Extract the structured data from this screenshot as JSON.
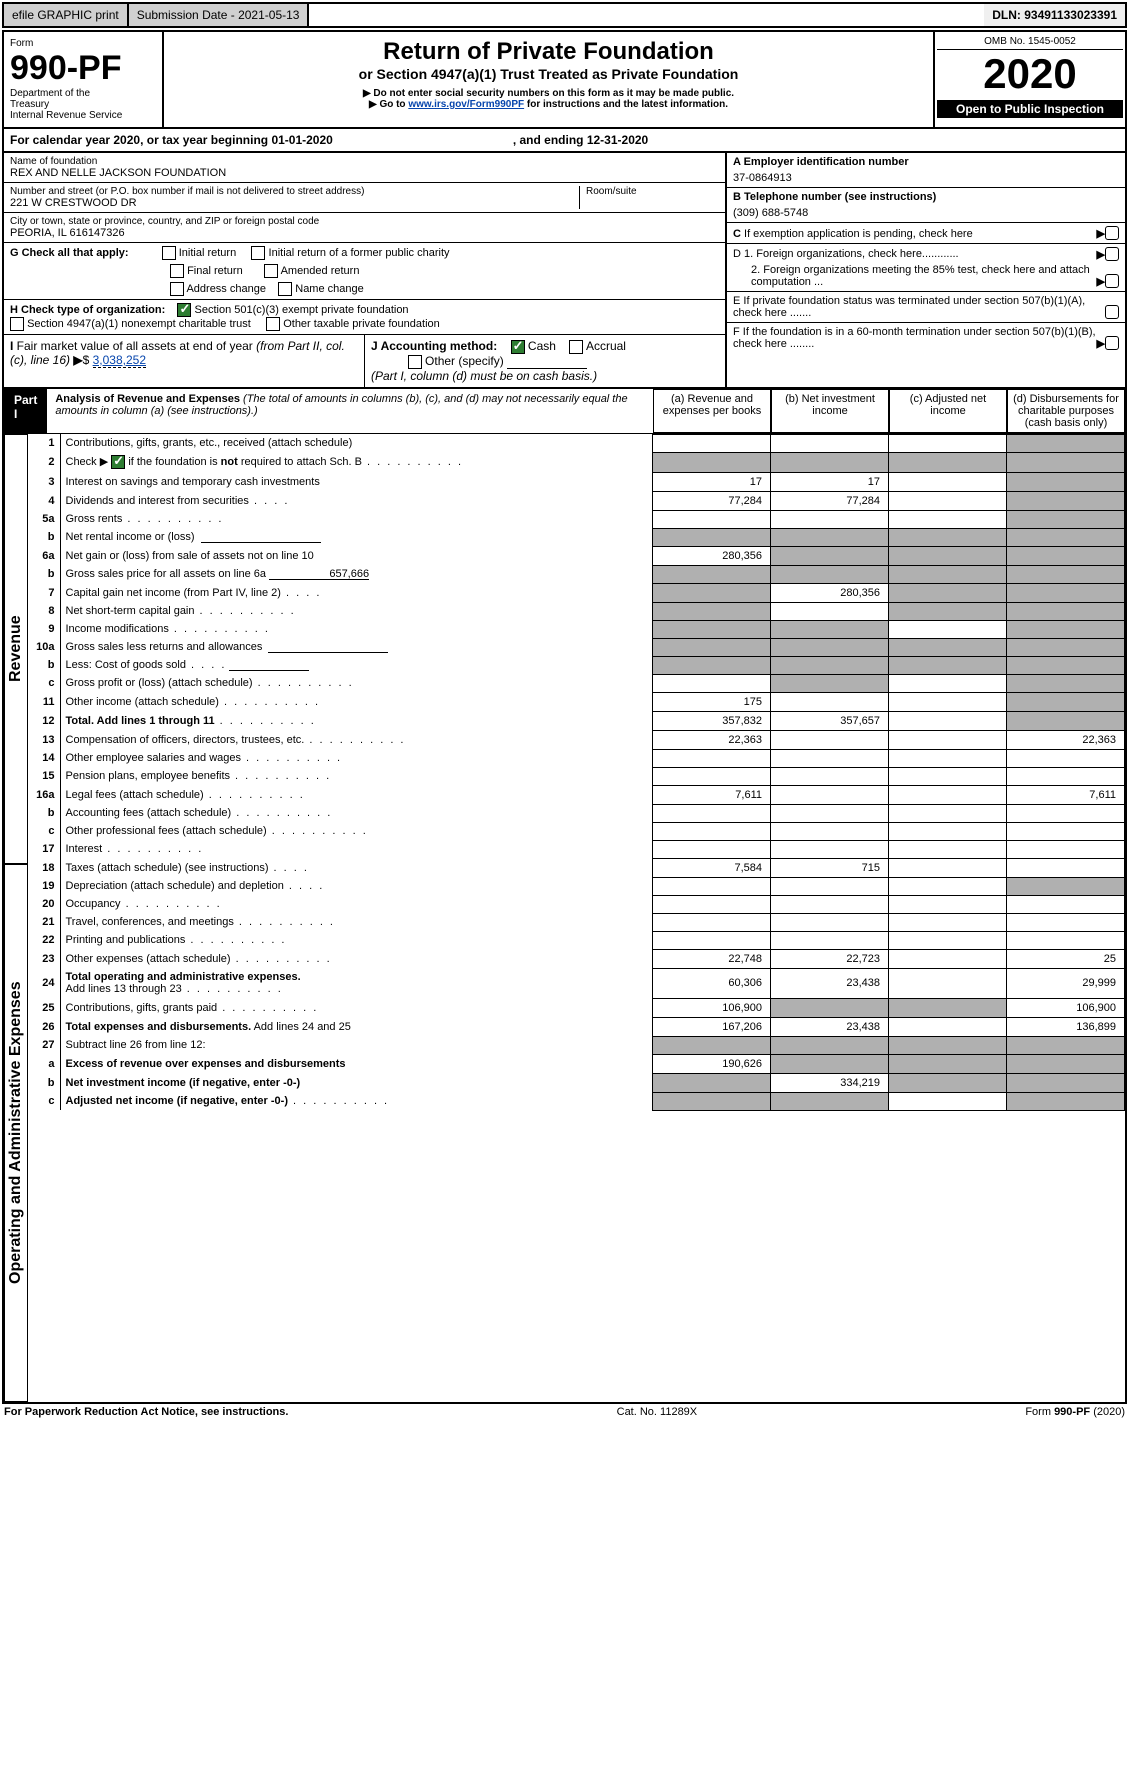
{
  "topbar": {
    "efile": "efile GRAPHIC print",
    "submission": "Submission Date - 2021-05-13",
    "dln": "DLN: 93491133023391"
  },
  "header": {
    "form_label": "Form",
    "form_no": "990-PF",
    "dept1": "Department of the",
    "dept2": "Treasury",
    "dept3": "Internal Revenue Service",
    "title": "Return of Private Foundation",
    "sub1": "or Section 4947(a)(1) Trust Treated as Private Foundation",
    "sub2": "▶ Do not enter social security numbers on this form as it may be made public.",
    "sub3_pre": "▶ Go to ",
    "sub3_link": "www.irs.gov/Form990PF",
    "sub3_post": " for instructions and the latest information.",
    "omb": "OMB No. 1545-0052",
    "year": "2020",
    "open": "Open to Public Inspection"
  },
  "cal": {
    "line": "For calendar year 2020, or tax year beginning 01-01-2020",
    "ending": ", and ending 12-31-2020"
  },
  "id": {
    "name_label": "Name of foundation",
    "name": "REX AND NELLE JACKSON FOUNDATION",
    "addr_label": "Number and street (or P.O. box number if mail is not delivered to street address)",
    "addr": "221 W CRESTWOOD DR",
    "room_label": "Room/suite",
    "city_label": "City or town, state or province, country, and ZIP or foreign postal code",
    "city": "PEORIA, IL 616147326",
    "a_label": "A Employer identification number",
    "a_val": "37-0864913",
    "b_label": "B Telephone number (see instructions)",
    "b_val": "(309) 688-5748",
    "c_label": "C If exemption application is pending, check here",
    "d1_label": "D 1. Foreign organizations, check here............",
    "d2_label": "2. Foreign organizations meeting the 85% test, check here and attach computation ...",
    "e_label": "E  If private foundation status was terminated under section 507(b)(1)(A), check here .......",
    "f_label": "F  If the foundation is in a 60-month termination under section 507(b)(1)(B), check here ........"
  },
  "g": {
    "label": "G Check all that apply:",
    "opts": [
      "Initial return",
      "Initial return of a former public charity",
      "Final return",
      "Amended return",
      "Address change",
      "Name change"
    ]
  },
  "h": {
    "label": "H Check type of organization:",
    "opt1": "Section 501(c)(3) exempt private foundation",
    "opt1_checked": true,
    "opt2": "Section 4947(a)(1) nonexempt charitable trust",
    "opt3": "Other taxable private foundation"
  },
  "i": {
    "label": "I Fair market value of all assets at end of year (from Part II, col. (c), line 16)",
    "val": "3,038,252"
  },
  "j": {
    "label": "J Accounting method:",
    "cash": "Cash",
    "cash_checked": true,
    "accrual": "Accrual",
    "other": "Other (specify)",
    "note": "(Part I, column (d) must be on cash basis.)"
  },
  "part1": {
    "label": "Part I",
    "title": "Analysis of Revenue and Expenses",
    "note": " (The total of amounts in columns (b), (c), and (d) may not necessarily equal the amounts in column (a) (see instructions).)",
    "col_a": "(a)   Revenue and expenses per books",
    "col_b": "(b)  Net investment income",
    "col_c": "(c)  Adjusted net income",
    "col_d": "(d)  Disbursements for charitable purposes (cash basis only)"
  },
  "vlabels": {
    "revenue": "Revenue",
    "expenses": "Operating and Administrative Expenses"
  },
  "lines": {
    "1": {
      "n": "1",
      "t": "Contributions, gifts, grants, etc., received (attach schedule)"
    },
    "2": {
      "n": "2",
      "t": "Check ▶",
      "t2": " if the foundation is not required to attach Sch. B",
      "chk": true
    },
    "3": {
      "n": "3",
      "t": "Interest on savings and temporary cash investments",
      "a": "17",
      "b": "17"
    },
    "4": {
      "n": "4",
      "t": "Dividends and interest from securities",
      "a": "77,284",
      "b": "77,284"
    },
    "5a": {
      "n": "5a",
      "t": "Gross rents"
    },
    "5b": {
      "n": "b",
      "t": "Net rental income or (loss)"
    },
    "6a": {
      "n": "6a",
      "t": "Net gain or (loss) from sale of assets not on line 10",
      "a": "280,356"
    },
    "6b": {
      "n": "b",
      "t": "Gross sales price for all assets on line 6a",
      "val": "657,666"
    },
    "7": {
      "n": "7",
      "t": "Capital gain net income (from Part IV, line 2)",
      "b": "280,356"
    },
    "8": {
      "n": "8",
      "t": "Net short-term capital gain"
    },
    "9": {
      "n": "9",
      "t": "Income modifications"
    },
    "10a": {
      "n": "10a",
      "t": "Gross sales less returns and allowances"
    },
    "10b": {
      "n": "b",
      "t": "Less: Cost of goods sold"
    },
    "10c": {
      "n": "c",
      "t": "Gross profit or (loss) (attach schedule)"
    },
    "11": {
      "n": "11",
      "t": "Other income (attach schedule)",
      "a": "175"
    },
    "12": {
      "n": "12",
      "t": "Total. Add lines 1 through 11",
      "a": "357,832",
      "b": "357,657",
      "bold": true
    },
    "13": {
      "n": "13",
      "t": "Compensation of officers, directors, trustees, etc.",
      "a": "22,363",
      "d": "22,363"
    },
    "14": {
      "n": "14",
      "t": "Other employee salaries and wages"
    },
    "15": {
      "n": "15",
      "t": "Pension plans, employee benefits"
    },
    "16a": {
      "n": "16a",
      "t": "Legal fees (attach schedule)",
      "a": "7,611",
      "d": "7,611"
    },
    "16b": {
      "n": "b",
      "t": "Accounting fees (attach schedule)"
    },
    "16c": {
      "n": "c",
      "t": "Other professional fees (attach schedule)"
    },
    "17": {
      "n": "17",
      "t": "Interest"
    },
    "18": {
      "n": "18",
      "t": "Taxes (attach schedule) (see instructions)",
      "a": "7,584",
      "b": "715"
    },
    "19": {
      "n": "19",
      "t": "Depreciation (attach schedule) and depletion"
    },
    "20": {
      "n": "20",
      "t": "Occupancy"
    },
    "21": {
      "n": "21",
      "t": "Travel, conferences, and meetings"
    },
    "22": {
      "n": "22",
      "t": "Printing and publications"
    },
    "23": {
      "n": "23",
      "t": "Other expenses (attach schedule)",
      "a": "22,748",
      "b": "22,723",
      "d": "25"
    },
    "24": {
      "n": "24",
      "t": "Total operating and administrative expenses.",
      "t2": "Add lines 13 through 23",
      "a": "60,306",
      "b": "23,438",
      "d": "29,999",
      "bold": true
    },
    "25": {
      "n": "25",
      "t": "Contributions, gifts, grants paid",
      "a": "106,900",
      "d": "106,900"
    },
    "26": {
      "n": "26",
      "t": "Total expenses and disbursements. Add lines 24 and 25",
      "a": "167,206",
      "b": "23,438",
      "d": "136,899",
      "bold": true
    },
    "27": {
      "n": "27",
      "t": "Subtract line 26 from line 12:"
    },
    "27a": {
      "n": "a",
      "t": "Excess of revenue over expenses and disbursements",
      "a": "190,626",
      "bold": true
    },
    "27b": {
      "n": "b",
      "t": "Net investment income (if negative, enter -0-)",
      "b": "334,219",
      "bold": true
    },
    "27c": {
      "n": "c",
      "t": "Adjusted net income (if negative, enter -0-)",
      "bold": true
    }
  },
  "footer": {
    "left": "For Paperwork Reduction Act Notice, see instructions.",
    "mid": "Cat. No. 11289X",
    "right": "Form 990-PF (2020)"
  },
  "colors": {
    "greybg": "#b0b0b0",
    "check_green": "#2e7d32",
    "link": "#0645ad"
  }
}
